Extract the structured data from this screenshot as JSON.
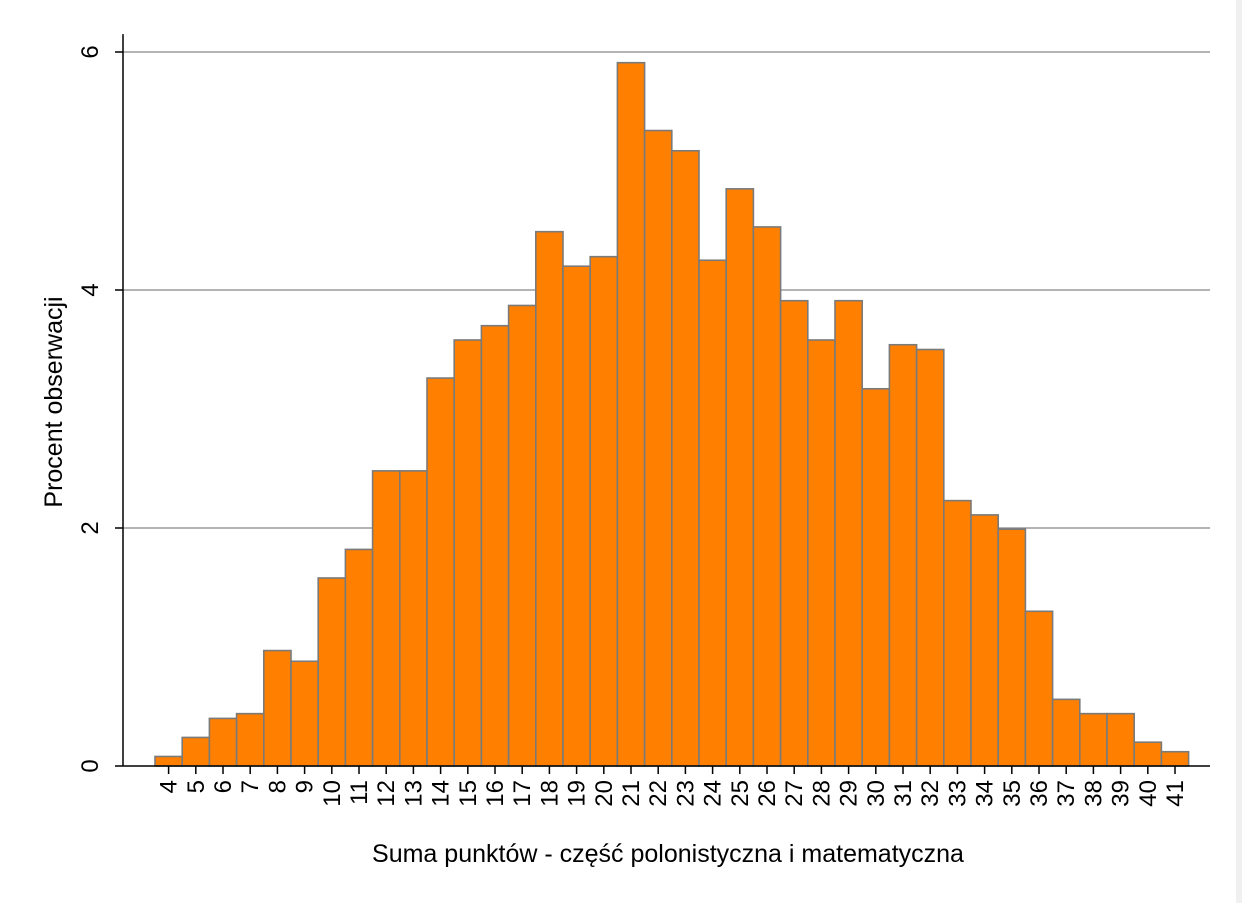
{
  "chart_data": {
    "type": "bar",
    "title": "",
    "xlabel": "Suma punktów - część polonistyczna i matematyczna",
    "ylabel": "Procent obserwacji",
    "ylim": [
      0,
      6.15
    ],
    "yticks": [
      0,
      2,
      4,
      6
    ],
    "grid": true,
    "categories": [
      "4",
      "5",
      "6",
      "7",
      "8",
      "9",
      "10",
      "11",
      "12",
      "13",
      "14",
      "15",
      "16",
      "17",
      "18",
      "19",
      "20",
      "21",
      "22",
      "23",
      "24",
      "25",
      "26",
      "27",
      "28",
      "29",
      "30",
      "31",
      "32",
      "33",
      "34",
      "35",
      "36",
      "37",
      "38",
      "39",
      "40",
      "41"
    ],
    "values": [
      0.08,
      0.24,
      0.4,
      0.44,
      0.97,
      0.88,
      1.58,
      1.82,
      2.48,
      2.48,
      3.26,
      3.58,
      3.7,
      3.87,
      4.49,
      4.2,
      4.28,
      5.91,
      5.34,
      5.17,
      4.25,
      4.85,
      4.53,
      3.91,
      3.58,
      3.91,
      3.17,
      3.54,
      3.5,
      2.23,
      2.11,
      1.99,
      1.3,
      0.56,
      0.44,
      0.44,
      0.2,
      0.12
    ],
    "colors": {
      "bar_fill": "#ff8000",
      "bar_stroke": "#7a7a7a",
      "grid": "#888888",
      "axis": "#000000"
    }
  }
}
